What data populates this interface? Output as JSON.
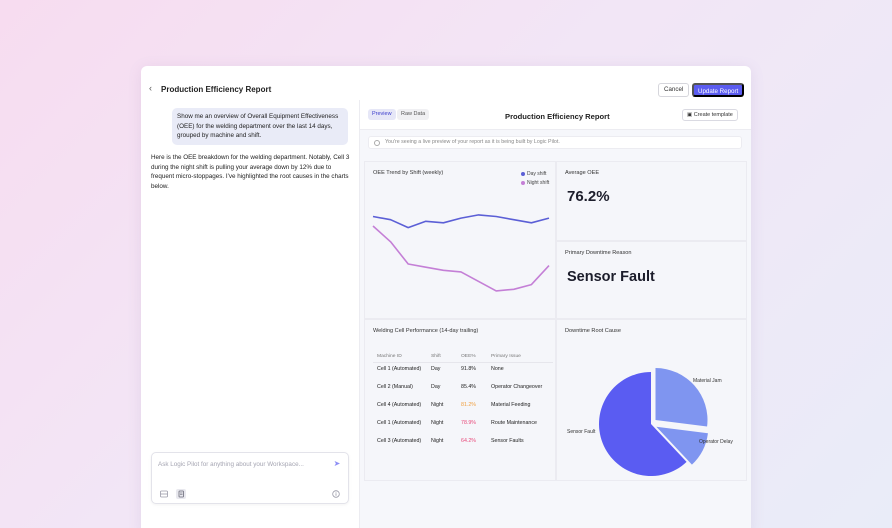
{
  "header": {
    "back_icon": "chevron-left-icon",
    "title": "Production Efficiency Report",
    "cancel_label": "Cancel",
    "update_label": "Update Report"
  },
  "chat": {
    "user_message": "Show me an overview of Overall Equipment Effectiveness (OEE) for the welding department over the last 14 days, grouped by machine and shift.",
    "assistant_message": "Here is the OEE breakdown for the welding department. Notably, Cell 3 during the night shift is pulling your average down by 12% due to frequent micro-stoppages. I've highlighted the root causes in the charts below.",
    "input_placeholder": "Ask Logic Pilot for anything about your Workspace...",
    "send_icon": "send-icon",
    "tool_icons": [
      "layout-icon",
      "document-icon",
      "info-icon"
    ]
  },
  "preview": {
    "tabs": [
      "Preview",
      "Raw Data"
    ],
    "title": "Production Efficiency Report",
    "create_template_label": "Create template",
    "info_text": "You're seeing a live preview of your report as it is being built by Logic Pilot.",
    "colors": {
      "accent": "#5b5cf0",
      "day_shift": "#5b5fd6",
      "night_shift": "#c47fd6",
      "pie_main": "#5a5cf2",
      "pie_light": "#7f95f0",
      "warn": "#f0a040",
      "danger": "#e8497a"
    }
  },
  "trend_card": {
    "title": "OEE Trend by Shift (weekly)",
    "legend": [
      "Day shift",
      "Night shift"
    ]
  },
  "avg_card": {
    "title": "Average OEE",
    "value": "76.2%"
  },
  "reason_card": {
    "title": "Primary Downtime Reason",
    "value": "Sensor Fault"
  },
  "table_card": {
    "title": "Welding Cell Performance (14-day trailing)",
    "headers": [
      "Machine ID",
      "Shift",
      "OEE%",
      "Primary Issue"
    ],
    "rows": [
      {
        "machine": "Cell 1 (Automated)",
        "shift": "Day",
        "oee": "91.8%",
        "issue": "None",
        "status": "normal"
      },
      {
        "machine": "Cell 2 (Manual)",
        "shift": "Day",
        "oee": "85.4%",
        "issue": "Operator Changeover",
        "status": "normal"
      },
      {
        "machine": "Cell 4 (Automated)",
        "shift": "Night",
        "oee": "81.2%",
        "issue": "Material Feeding",
        "status": "warn"
      },
      {
        "machine": "Cell 1 (Automated)",
        "shift": "Night",
        "oee": "78.9%",
        "issue": "Route Maintenance",
        "status": "danger"
      },
      {
        "machine": "Cell 3 (Automated)",
        "shift": "Night",
        "oee": "64.2%",
        "issue": "Sensor Faults",
        "status": "danger"
      }
    ]
  },
  "pie_card": {
    "title": "Downtime Root Cause"
  },
  "chart_data": [
    {
      "type": "line",
      "title": "OEE Trend by Shift (weekly)",
      "x": [
        1,
        2,
        3,
        4,
        5,
        6,
        7,
        8,
        9,
        10,
        11
      ],
      "series": [
        {
          "name": "Day shift",
          "values": [
            84,
            82,
            77,
            81,
            80,
            83,
            85,
            84,
            82,
            80,
            83
          ]
        },
        {
          "name": "Night shift",
          "values": [
            78,
            68,
            54,
            52,
            50,
            49,
            43,
            37,
            38,
            41,
            53
          ]
        }
      ],
      "ylim": [
        30,
        90
      ],
      "grid": false,
      "legend": "top-right"
    },
    {
      "type": "pie",
      "title": "Downtime Root Cause",
      "categories": [
        "Sensor Fault",
        "Material Jam",
        "Operator Delay"
      ],
      "values": [
        62,
        27,
        11
      ],
      "exploded": true
    }
  ]
}
